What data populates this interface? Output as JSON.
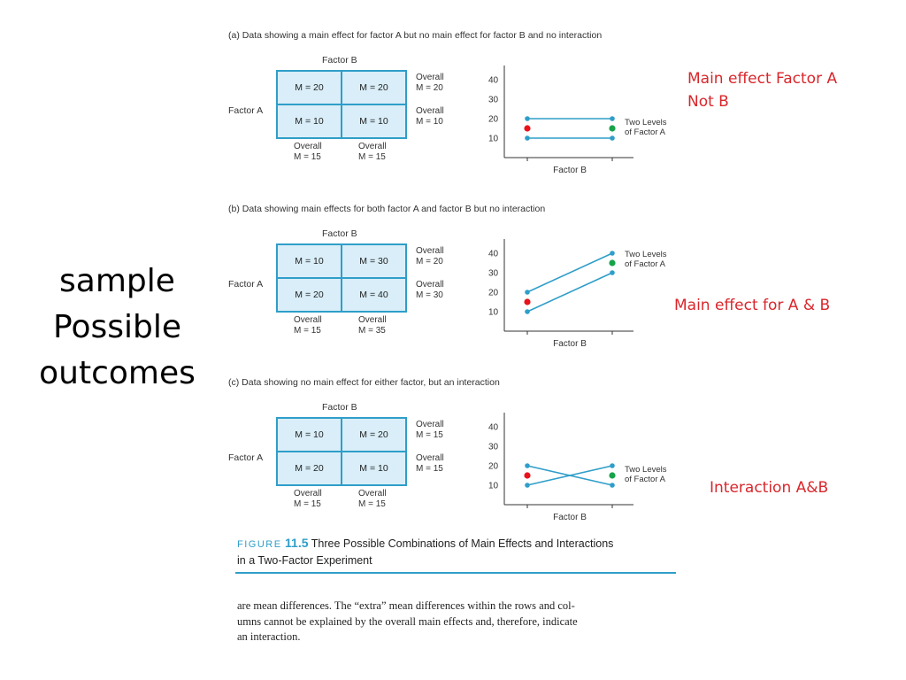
{
  "slide_title": [
    "sample",
    "Possible",
    "outcomes"
  ],
  "figure": {
    "label": "FIGURE",
    "number": "11.5",
    "title_line1": "Three Possible Combinations of Main Effects and Interactions",
    "title_line2": "in a Two-Factor Experiment"
  },
  "body_text": [
    "are mean differences. The “extra” mean differences within the rows and col-",
    "umns cannot be explained by the overall main effects and, therefore, indicate",
    "an interaction."
  ],
  "colors": {
    "accent": "#2f9ec9",
    "annotation": "#d9262b",
    "marker_red": "#e8131c",
    "marker_green": "#17a34a",
    "cell_fill": "#d9eef8"
  },
  "chart_data": [
    {
      "type": "line",
      "caption": "(a) Data showing a main effect for factor A but no main effect for factor B and no interaction",
      "factor_b_label": "Factor B",
      "factor_a_label": "Factor A",
      "cells": [
        [
          "M = 20",
          "M = 20"
        ],
        [
          "M = 10",
          "M = 10"
        ]
      ],
      "row_overall": [
        [
          "Overall",
          "M = 20"
        ],
        [
          "Overall",
          "M = 10"
        ]
      ],
      "col_overall": [
        [
          "Overall",
          "M = 15"
        ],
        [
          "Overall",
          "M = 15"
        ]
      ],
      "x_label": "Factor B",
      "y_ticks": [
        "40",
        "30",
        "20",
        "10"
      ],
      "ylim": [
        0,
        40
      ],
      "legend": [
        "Two Levels",
        "of Factor A"
      ],
      "series": [
        {
          "values": [
            20,
            20
          ]
        },
        {
          "values": [
            10,
            10
          ]
        }
      ],
      "markers": {
        "red_y": 15,
        "green_y": 15
      },
      "annotation": [
        "Main effect Factor A",
        "Not B"
      ]
    },
    {
      "type": "line",
      "caption": "(b) Data showing main effects for both factor A and factor B but no interaction",
      "factor_b_label": "Factor B",
      "factor_a_label": "Factor A",
      "cells": [
        [
          "M = 10",
          "M = 30"
        ],
        [
          "M = 20",
          "M = 40"
        ]
      ],
      "row_overall": [
        [
          "Overall",
          "M = 20"
        ],
        [
          "Overall",
          "M = 30"
        ]
      ],
      "col_overall": [
        [
          "Overall",
          "M = 15"
        ],
        [
          "Overall",
          "M = 35"
        ]
      ],
      "x_label": "Factor B",
      "y_ticks": [
        "40",
        "30",
        "20",
        "10"
      ],
      "ylim": [
        0,
        40
      ],
      "legend": [
        "Two Levels",
        "of Factor A"
      ],
      "series": [
        {
          "values": [
            10,
            30
          ]
        },
        {
          "values": [
            20,
            40
          ]
        }
      ],
      "markers": {
        "red_y": 15,
        "green_y": 35
      },
      "annotation": [
        "Main effect for A & B"
      ]
    },
    {
      "type": "line",
      "caption": "(c) Data showing no main effect for either factor, but an interaction",
      "factor_b_label": "Factor B",
      "factor_a_label": "Factor A",
      "cells": [
        [
          "M = 10",
          "M = 20"
        ],
        [
          "M = 20",
          "M = 10"
        ]
      ],
      "row_overall": [
        [
          "Overall",
          "M = 15"
        ],
        [
          "Overall",
          "M = 15"
        ]
      ],
      "col_overall": [
        [
          "Overall",
          "M = 15"
        ],
        [
          "Overall",
          "M = 15"
        ]
      ],
      "x_label": "Factor B",
      "y_ticks": [
        "40",
        "30",
        "20",
        "10"
      ],
      "ylim": [
        0,
        40
      ],
      "legend": [
        "Two Levels",
        "of Factor A"
      ],
      "series": [
        {
          "values": [
            10,
            20
          ]
        },
        {
          "values": [
            20,
            10
          ]
        }
      ],
      "markers": {
        "red_y": 15,
        "green_y": 15
      },
      "annotation": [
        "Interaction A&B"
      ]
    }
  ]
}
